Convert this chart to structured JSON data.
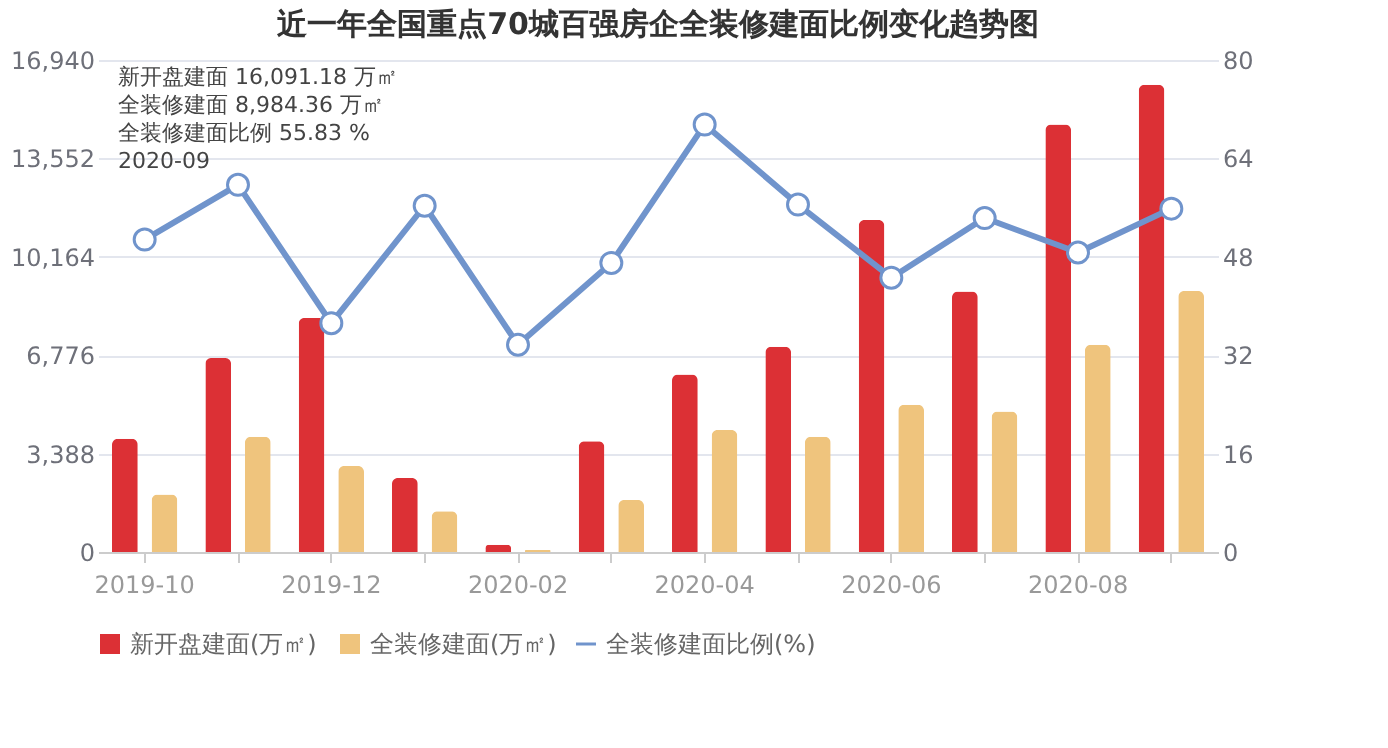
{
  "chart_data": {
    "type": "bar",
    "title": "近一年全国重点70城百强房企全装修建面比例变化趋势图",
    "categories": [
      "2019-10",
      null,
      "2019-12",
      null,
      "2020-02",
      null,
      "2020-04",
      null,
      "2020-06",
      null,
      "2020-08",
      null
    ],
    "series": [
      {
        "name": "新开盘建面(万㎡)",
        "color": "#dc3035",
        "values": [
          3900,
          6680,
          8060,
          2550,
          250,
          3810,
          6110,
          7070,
          11430,
          8970,
          14720,
          16091.18
        ]
      },
      {
        "name": "全装修建面(万㎡)",
        "color": "#efc47d",
        "values": [
          1980,
          3970,
          2960,
          1400,
          70,
          1790,
          4200,
          3970,
          5070,
          4840,
          7140,
          8984.36
        ]
      },
      {
        "name": "全装修建面比例(%)",
        "type": "line",
        "axis": "y2",
        "color": "#7094cc",
        "marker": "circle",
        "values": [
          50.8,
          59.7,
          37.2,
          56.3,
          33.7,
          47.0,
          69.5,
          56.5,
          44.6,
          54.3,
          48.7,
          55.83
        ]
      }
    ],
    "ylim": [
      0,
      16940
    ],
    "yticks": [
      0,
      {
        "value": 3388,
        "label": "3,388"
      },
      {
        "value": 6776,
        "label": "6,776"
      },
      {
        "value": 10164,
        "label": "10,164"
      },
      {
        "value": 13552,
        "label": "13,552"
      },
      {
        "value": 16940,
        "label": "16,940"
      }
    ],
    "y2lim": [
      0,
      80
    ],
    "y2ticks": [
      0,
      16,
      32,
      48,
      64,
      80
    ],
    "grid": "y",
    "legend": "bottom",
    "annotations": [
      "新开盘建面 16,091.18 万㎡",
      "全装修建面 8,984.36 万㎡",
      "全装修建面比例 55.83 %",
      "2020-09"
    ]
  }
}
